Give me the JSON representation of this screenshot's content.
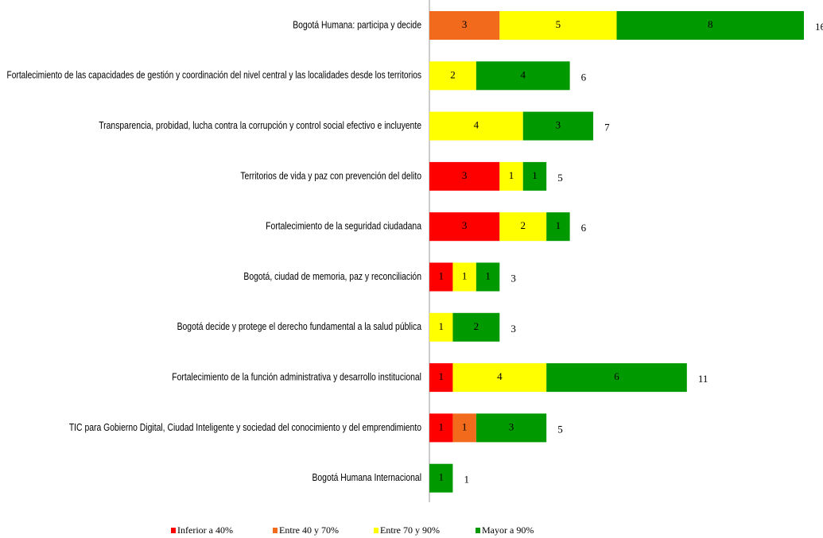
{
  "chart_data": {
    "type": "stacked-bar-horizontal",
    "categories": [
      "Bogotá Humana: participa y decide",
      "Fortalecimiento de las capacidades de gestión y coordinación del nivel central y las localidades desde los territorios",
      "Transparencia, probidad, lucha contra la corrupción y control social efectivo e incluyente",
      "Territorios de vida y paz con prevención del delito",
      "Fortalecimiento de la seguridad ciudadana",
      "Bogotá, ciudad de memoria, paz y reconciliación",
      "Bogotá decide y protege el derecho fundamental a la salud pública",
      "Fortalecimiento de la función administrativa y desarrollo institucional",
      "TIC para Gobierno Digital, Ciudad Inteligente y sociedad del conocimiento y del emprendimiento",
      "Bogotá Humana Internacional"
    ],
    "series": [
      {
        "name": "Inferior a 40%",
        "color": "#ff0000",
        "values": [
          null,
          null,
          null,
          3,
          3,
          1,
          null,
          1,
          1,
          null
        ]
      },
      {
        "name": "Entre 40 y 70%",
        "color": "#f26b1d",
        "values": [
          3,
          null,
          null,
          null,
          null,
          null,
          null,
          null,
          1,
          null
        ]
      },
      {
        "name": "Entre 70 y 90%",
        "color": "#ffff00",
        "values": [
          5,
          2,
          4,
          1,
          2,
          1,
          1,
          4,
          null,
          null
        ]
      },
      {
        "name": "Mayor a 90%",
        "color": "#009a00",
        "values": [
          8,
          4,
          3,
          1,
          1,
          1,
          2,
          6,
          3,
          1
        ]
      }
    ],
    "totals": [
      16,
      6,
      7,
      5,
      6,
      3,
      3,
      11,
      5,
      1
    ],
    "legend": "bottom"
  }
}
